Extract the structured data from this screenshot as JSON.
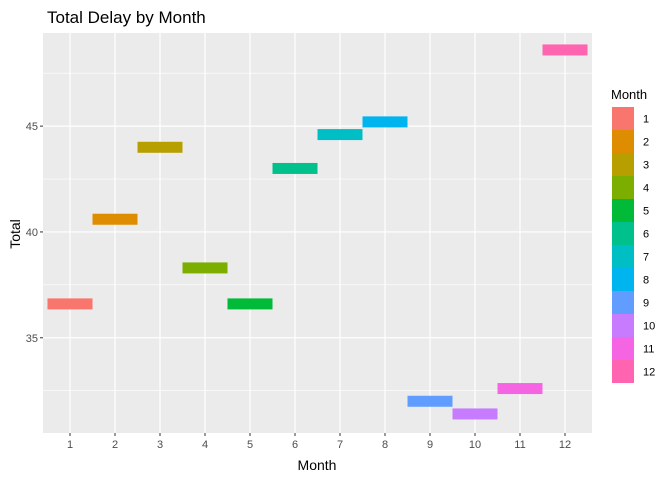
{
  "chart_data": {
    "type": "bar",
    "subtype": "crossbar",
    "title": "Total Delay by Month",
    "xlabel": "Month",
    "ylabel": "Total",
    "categories": [
      "1",
      "2",
      "3",
      "4",
      "5",
      "6",
      "7",
      "8",
      "9",
      "10",
      "11",
      "12"
    ],
    "values": [
      36.6,
      40.6,
      44.0,
      38.3,
      36.6,
      43.0,
      44.6,
      45.2,
      32.0,
      31.4,
      32.6,
      48.6
    ],
    "colors": [
      "#F8766D",
      "#DE8C00",
      "#B79F00",
      "#7CAE00",
      "#00BA38",
      "#00C08B",
      "#00BFC4",
      "#00B4F0",
      "#619CFF",
      "#C77CFF",
      "#F564E3",
      "#FF64B0"
    ],
    "ylim": [
      30.5,
      49.4
    ],
    "yticks": [
      35,
      40,
      45
    ],
    "grid": true,
    "background": "#EBEBEB",
    "legend": {
      "title": "Month",
      "position": "right",
      "entries": [
        "1",
        "2",
        "3",
        "4",
        "5",
        "6",
        "7",
        "8",
        "9",
        "10",
        "11",
        "12"
      ]
    }
  }
}
